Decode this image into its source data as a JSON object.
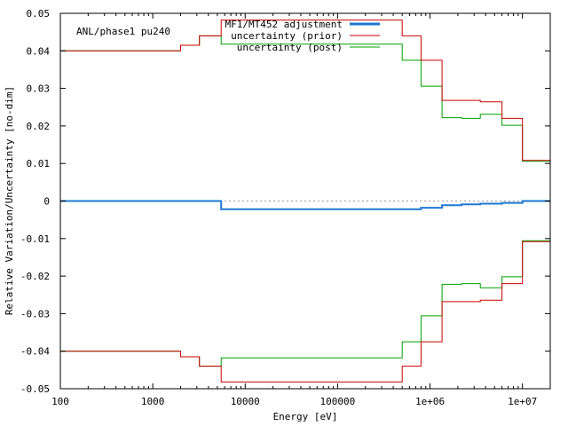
{
  "chart_data": {
    "type": "line",
    "title": "",
    "annotation": "ANL/phase1 pu240",
    "xlabel": "Energy [eV]",
    "ylabel": "Relative Variation/Uncertainty [no-dim]",
    "xscale": "log",
    "xlim": [
      100,
      20000000
    ],
    "ylim": [
      -0.05,
      0.05
    ],
    "x_ticks": [
      {
        "value": 100,
        "label": "100"
      },
      {
        "value": 1000,
        "label": "1000"
      },
      {
        "value": 10000,
        "label": "10000"
      },
      {
        "value": 100000,
        "label": "100000"
      },
      {
        "value": 1000000,
        "label": "1e+06"
      },
      {
        "value": 10000000,
        "label": "1e+07"
      }
    ],
    "y_ticks": [
      {
        "value": 0.05,
        "label": "0.05"
      },
      {
        "value": 0.04,
        "label": "0.04"
      },
      {
        "value": 0.03,
        "label": "0.03"
      },
      {
        "value": 0.02,
        "label": "0.02"
      },
      {
        "value": 0.01,
        "label": "0.01"
      },
      {
        "value": 0,
        "label": "0"
      },
      {
        "value": -0.01,
        "label": "-0.01"
      },
      {
        "value": -0.02,
        "label": "-0.02"
      },
      {
        "value": -0.03,
        "label": "-0.03"
      },
      {
        "value": -0.04,
        "label": "-0.04"
      },
      {
        "value": -0.05,
        "label": "-0.05"
      }
    ],
    "grid": false,
    "zero_line": true,
    "legend_position": "top-center",
    "bin_edges": [
      100,
      2000,
      3200,
      5500,
      500000,
      800000,
      1350000,
      2200000,
      3500000,
      6000000,
      10000000,
      20000000
    ],
    "series": [
      {
        "name": "MF1/MT452 adjustment",
        "color": "#1e78d2",
        "symmetric": false,
        "values": [
          0.0,
          0.0,
          0.0,
          -0.0022,
          -0.0022,
          -0.0018,
          -0.0011,
          -0.0009,
          -0.0007,
          -0.0005,
          0.0
        ]
      },
      {
        "name": "uncertainty (prior)",
        "color": "#cc0000",
        "symmetric": true,
        "values": [
          0.04,
          0.0415,
          0.044,
          0.0482,
          0.044,
          0.0375,
          0.0268,
          0.0268,
          0.0264,
          0.022,
          0.0108
        ]
      },
      {
        "name": "uncertainty (post)",
        "color": "#00a000",
        "symmetric": true,
        "values": [
          0.04,
          0.0415,
          0.044,
          0.0418,
          0.0375,
          0.0306,
          0.0222,
          0.022,
          0.0231,
          0.0202,
          0.0106
        ]
      }
    ]
  }
}
